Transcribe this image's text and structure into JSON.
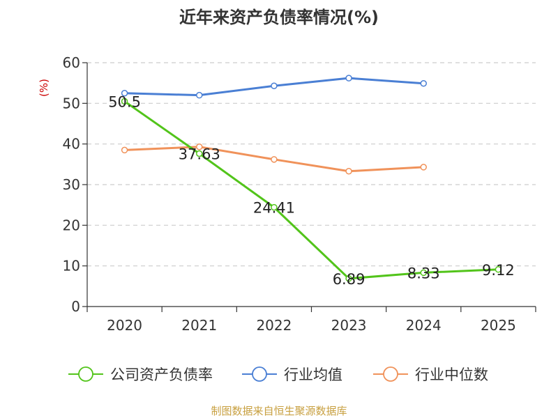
{
  "chart_data": {
    "type": "line",
    "title": "近年来资产负债率情况(%)",
    "y_unit": "(%)",
    "x": [
      "2020",
      "2021",
      "2022",
      "2023",
      "2024",
      "2025"
    ],
    "ylim": [
      0,
      60
    ],
    "yticks": [
      0,
      10,
      20,
      30,
      40,
      50,
      60
    ],
    "grid": true,
    "legend_position": "bottom",
    "series": [
      {
        "name": "公司资产负债率",
        "color": "#52c41a",
        "values": [
          50.5,
          37.63,
          24.41,
          6.89,
          8.33,
          9.12
        ],
        "labels": [
          "50.5",
          "37.63",
          "24.41",
          "6.89",
          "8.33",
          "9.12"
        ]
      },
      {
        "name": "行业均值",
        "color": "#4a7fd4",
        "values": [
          52.5,
          52.0,
          54.3,
          56.2,
          54.9,
          null
        ]
      },
      {
        "name": "行业中位数",
        "color": "#f0925a",
        "values": [
          38.5,
          39.3,
          36.2,
          33.3,
          34.3,
          null
        ]
      }
    ]
  },
  "colors": {
    "unit": "#cc0000",
    "source": "#c8a040",
    "axis": "#333333",
    "grid": "#cccccc"
  },
  "source": "制图数据来自恒生聚源数据库"
}
